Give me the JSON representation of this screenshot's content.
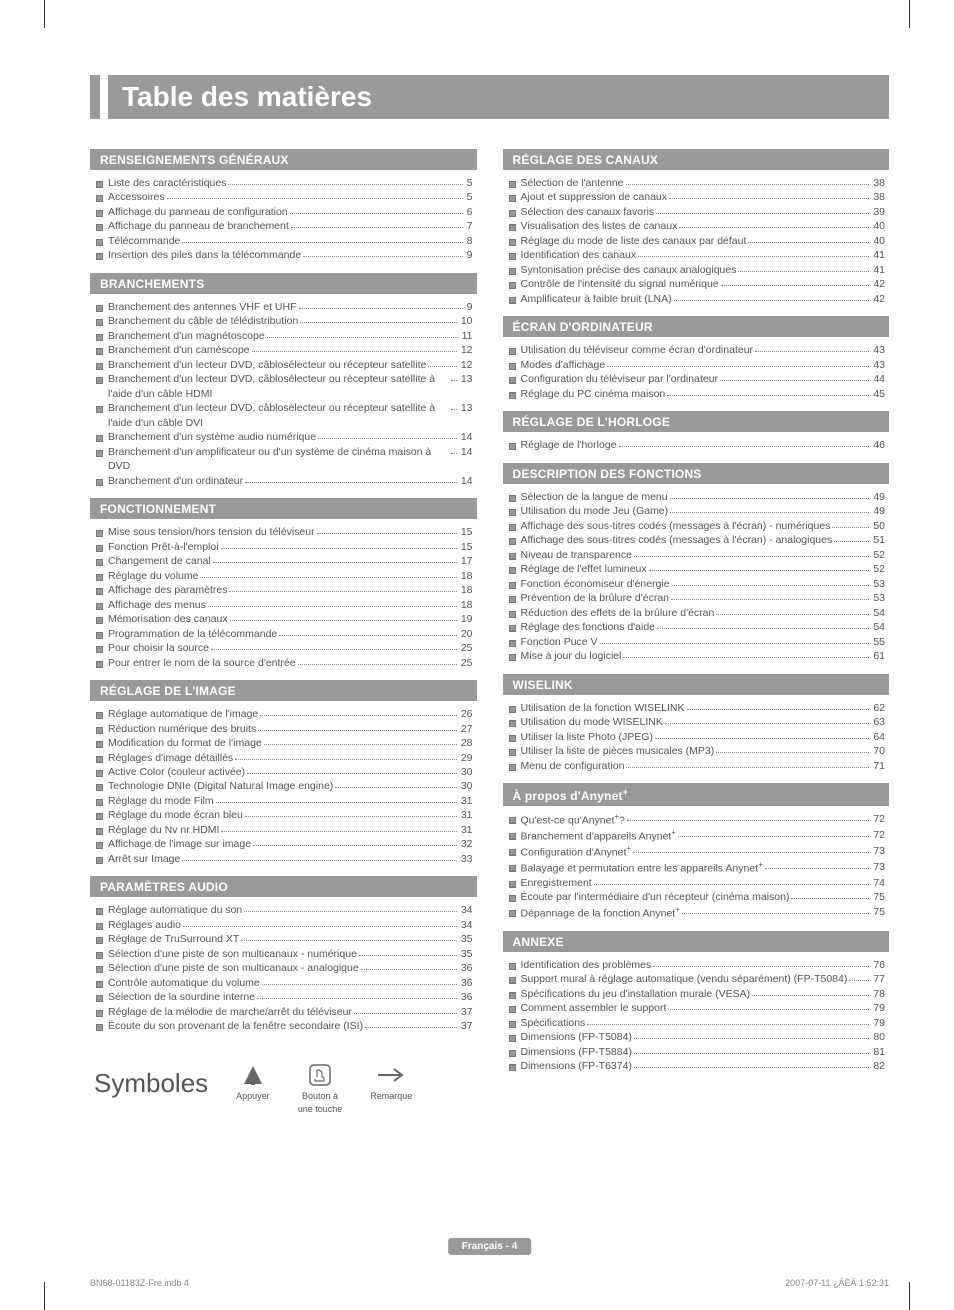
{
  "title": "Table des matières",
  "page_badge": "Français - 4",
  "footer_left": "BN68-01183Z-Fre.indb   4",
  "footer_right": "2007-07-11   ¿ÀÈÄ 1:52:31",
  "colors": {
    "bar_bg": "#9a9a9a",
    "bar_text": "#ffffff",
    "body_text": "#555555",
    "dot_leader": "#888888",
    "page_bg": "#ffffff"
  },
  "typography": {
    "title_fontsize": 28,
    "section_head_fontsize": 12,
    "entry_fontsize": 10.5,
    "symboles_title_fontsize": 26,
    "footer_fontsize": 9
  },
  "symboles": {
    "title": "Symboles",
    "items": [
      {
        "id": "appuyer",
        "label": "Appuyer"
      },
      {
        "id": "bouton",
        "label_line1": "Bouton à",
        "label_line2": "une touche"
      },
      {
        "id": "remarque",
        "label": "Remarque"
      }
    ]
  },
  "left_sections": [
    {
      "head": "RENSEIGNEMENTS GÉNÉRAUX",
      "items": [
        {
          "label": "Liste des caractéristiques",
          "page": "5"
        },
        {
          "label": "Accessoires",
          "page": "5"
        },
        {
          "label": "Affichage du panneau de configuration",
          "page": "6"
        },
        {
          "label": "Affichage du panneau de branchement",
          "page": "7"
        },
        {
          "label": "Télécommande",
          "page": "8"
        },
        {
          "label": "Insertion des piles dans la télécommande",
          "page": "9"
        }
      ]
    },
    {
      "head": "BRANCHEMENTS",
      "items": [
        {
          "label": "Branchement des antennes VHF et UHF",
          "page": "9"
        },
        {
          "label": "Branchement du câble de télédistribution",
          "page": "10"
        },
        {
          "label": "Branchement d'un magnétoscope",
          "page": "11"
        },
        {
          "label": "Branchement d'un caméscope",
          "page": "12"
        },
        {
          "label": "Branchement d'un lecteur DVD, câblosélecteur ou récepteur satellite",
          "page": "12"
        },
        {
          "label": "Branchement d'un lecteur DVD, câblosélecteur ou récepteur satellite à l'aide d'un câble HDMI",
          "page": "13"
        },
        {
          "label": "Branchement d'un lecteur DVD, câblosélecteur ou récepteur satellite à l'aide d'un câble DVI",
          "page": "13"
        },
        {
          "label": "Branchement d'un système audio numérique",
          "page": "14"
        },
        {
          "label": "Branchement d'un amplificateur ou d'un système de cinéma maison à DVD",
          "page": "14"
        },
        {
          "label": "Branchement d'un ordinateur",
          "page": "14"
        }
      ]
    },
    {
      "head": "FONCTIONNEMENT",
      "items": [
        {
          "label": "Mise sous tension/hors tension du téléviseur",
          "page": "15"
        },
        {
          "label": "Fonction Prêt-à-l'emploi",
          "page": "15"
        },
        {
          "label": "Changement de canal",
          "page": "17"
        },
        {
          "label": "Réglage du volume",
          "page": "18"
        },
        {
          "label": "Affichage des paramètres",
          "page": "18"
        },
        {
          "label": "Affichage des menus",
          "page": "18"
        },
        {
          "label": "Mémorisation des canaux",
          "page": "19"
        },
        {
          "label": "Programmation de la télécommande",
          "page": "20"
        },
        {
          "label": "Pour choisir la source",
          "page": "25"
        },
        {
          "label": "Pour entrer le nom de la source d'entrée",
          "page": "25"
        }
      ]
    },
    {
      "head": "RÉGLAGE DE L'IMAGE",
      "items": [
        {
          "label": "Réglage automatique de l'image",
          "page": "26"
        },
        {
          "label": "Réduction numérique des bruits",
          "page": "27"
        },
        {
          "label": "Modification du format de l'image",
          "page": "28"
        },
        {
          "label": "Réglages d'image détaillés",
          "page": "29"
        },
        {
          "label": "Active Color (couleur activée)",
          "page": "30"
        },
        {
          "label": "Technologie DNIe (Digital Natural Image engine)",
          "page": "30"
        },
        {
          "label": "Réglage du mode Film",
          "page": "31"
        },
        {
          "label": "Réglage du mode écran bleu",
          "page": "31"
        },
        {
          "label": "Réglage du Nv nr HDMI",
          "page": "31"
        },
        {
          "label": "Affichage de l'image sur image",
          "page": "32"
        },
        {
          "label": "Arrêt sur Image",
          "page": "33"
        }
      ]
    },
    {
      "head": "PARAMÈTRES AUDIO",
      "items": [
        {
          "label": "Réglage automatique du son",
          "page": "34"
        },
        {
          "label": "Réglages audio",
          "page": "34"
        },
        {
          "label": "Réglage de TruSurround XT",
          "page": "35"
        },
        {
          "label": "Sélection d'une piste de son multicanaux - numérique",
          "page": "35"
        },
        {
          "label": "Sélection d'une piste de son multicanaux - analogique",
          "page": "36"
        },
        {
          "label": "Contrôle automatique du volume",
          "page": "36"
        },
        {
          "label": "Sélection de la sourdine interne",
          "page": "36"
        },
        {
          "label": "Réglage de la mélodie de marche/arrêt du téléviseur",
          "page": "37"
        },
        {
          "label": "Écoute du son provenant de la fenêtre secondaire (ISI)",
          "page": "37"
        }
      ]
    }
  ],
  "right_sections": [
    {
      "head": "RÉGLAGE DES CANAUX",
      "items": [
        {
          "label": "Sélection de l'antenne",
          "page": "38"
        },
        {
          "label": "Ajout et suppression de canaux",
          "page": "38"
        },
        {
          "label": "Sélection des canaux favoris",
          "page": "39"
        },
        {
          "label": "Visualisation des listes de canaux",
          "page": "40"
        },
        {
          "label": "Réglage du mode de liste des canaux par défaut",
          "page": "40"
        },
        {
          "label": "Identification des canaux",
          "page": "41"
        },
        {
          "label": "Syntonisation précise des canaux analogiques",
          "page": "41"
        },
        {
          "label": "Contrôle de l'intensité du signal numérique",
          "page": "42"
        },
        {
          "label": "Amplificateur à faible bruit (LNA)",
          "page": "42"
        }
      ]
    },
    {
      "head": "ÉCRAN D'ORDINATEUR",
      "items": [
        {
          "label": "Utilisation du téléviseur comme écran d'ordinateur",
          "page": "43"
        },
        {
          "label": "Modes d'affichage",
          "page": "43"
        },
        {
          "label": "Configuration du téléviseur par l'ordinateur",
          "page": "44"
        },
        {
          "label": "Réglage du PC cinéma maison",
          "page": "45"
        }
      ]
    },
    {
      "head": "RÉGLAGE DE L'HORLOGE",
      "items": [
        {
          "label": "Réglage de l'horloge",
          "page": "46"
        }
      ]
    },
    {
      "head": "DESCRIPTION DES FONCTIONS",
      "items": [
        {
          "label": "Sélection de la langue de menu",
          "page": "49"
        },
        {
          "label": "Utilisation du mode Jeu (Game)",
          "page": "49"
        },
        {
          "label": "Affichage des sous-titres codés (messages à l'écran) - numériques",
          "page": "50"
        },
        {
          "label": "Affichage des sous-titres codés (messages à l'écran) - analogiques",
          "page": "51"
        },
        {
          "label": "Niveau de transparence",
          "page": "52"
        },
        {
          "label": "Réglage de l'effet lumineux",
          "page": "52"
        },
        {
          "label": "Fonction économiseur d'énergie",
          "page": "53"
        },
        {
          "label": "Prévention de la brûlure d'écran",
          "page": "53"
        },
        {
          "label": "Réduction des effets de la brûlure d'écran",
          "page": "54"
        },
        {
          "label": "Réglage des fonctions d'aide",
          "page": "54"
        },
        {
          "label": "Fonction Puce V",
          "page": "55"
        },
        {
          "label": "Mise à jour du logiciel",
          "page": "61"
        }
      ]
    },
    {
      "head": "WISELINK",
      "items": [
        {
          "label": "Utilisation de la fonction WISELINK",
          "page": "62"
        },
        {
          "label": "Utilisation du mode WISELINK",
          "page": "63"
        },
        {
          "label": "Utiliser la liste Photo (JPEG)",
          "page": "64"
        },
        {
          "label": "Utiliser la liste de pièces musicales (MP3)",
          "page": "70"
        },
        {
          "label": "Menu de configuration",
          "page": "71"
        }
      ]
    },
    {
      "head": "À propos d'Anynet",
      "head_suffix": "+",
      "items": [
        {
          "label": "Qu'est-ce qu'Anynet",
          "label_suffix": "+",
          "label_tail": "?",
          "page": "72"
        },
        {
          "label": "Branchement d'appareils Anynet",
          "label_suffix": "+",
          "page": "72"
        },
        {
          "label": "Configuration d'Anynet",
          "label_suffix": "+",
          "page": "73"
        },
        {
          "label": "Balayage et permutation entre les appareils Anynet",
          "label_suffix": "+",
          "page": "73"
        },
        {
          "label": "Enregistrement",
          "page": "74"
        },
        {
          "label": "Écoute par l'intermédiaire d'un récepteur (cinéma maison)",
          "page": "75"
        },
        {
          "label": "Dépannage de la fonction Anynet",
          "label_suffix": "+",
          "page": "75"
        }
      ]
    },
    {
      "head": "ANNEXE",
      "items": [
        {
          "label": "Identification des problèmes",
          "page": "76"
        },
        {
          "label": "Support mural à réglage automatique (vendu séparément) (FP-T5084)",
          "page": "77"
        },
        {
          "label": "Spécifications du jeu d'installation murale (VESA)",
          "page": "78"
        },
        {
          "label": "Comment assembler le support",
          "page": "79"
        },
        {
          "label": "Spécifications",
          "page": "79"
        },
        {
          "label": "Dimensions (FP-T5084)",
          "page": "80"
        },
        {
          "label": "Dimensions (FP-T5884)",
          "page": "81"
        },
        {
          "label": "Dimensions (FP-T6374)",
          "page": "82"
        }
      ]
    }
  ]
}
